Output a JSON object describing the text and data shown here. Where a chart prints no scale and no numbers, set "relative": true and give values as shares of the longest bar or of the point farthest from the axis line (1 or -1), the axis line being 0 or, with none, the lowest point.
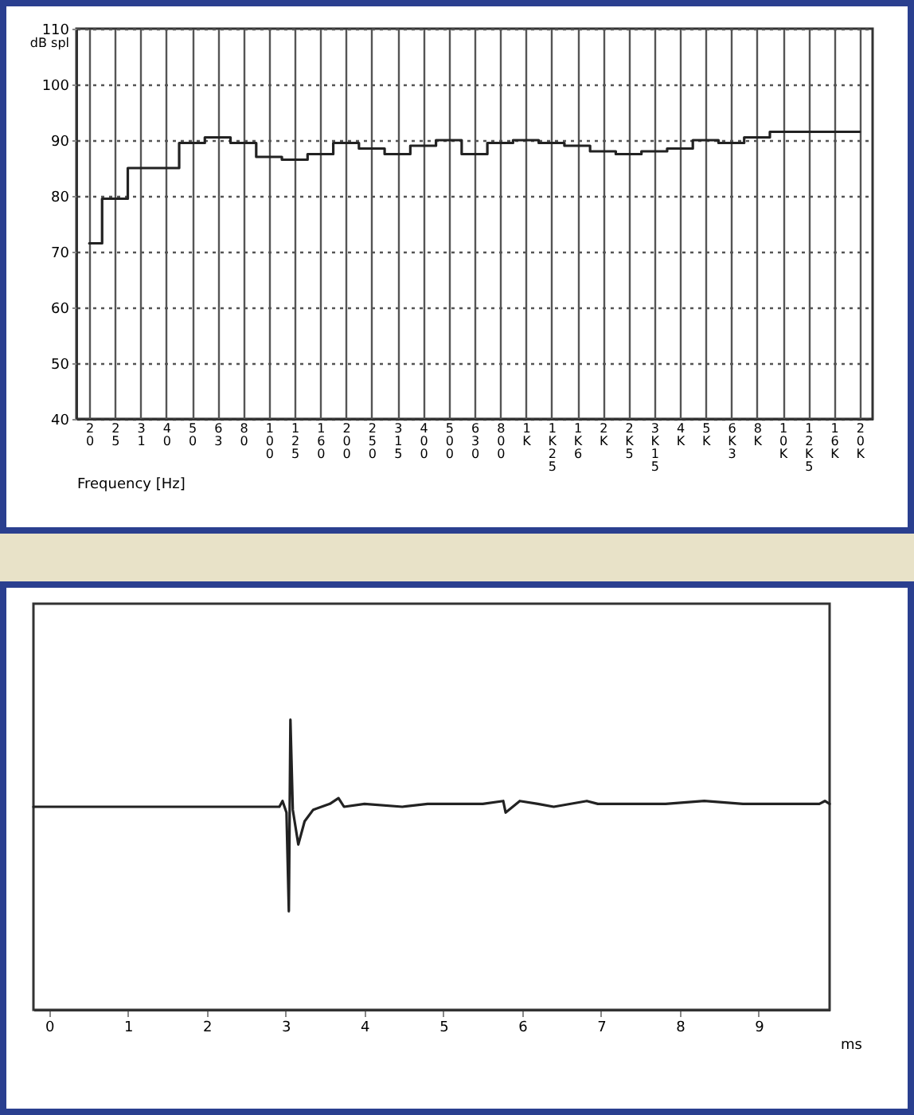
{
  "chart_data": [
    {
      "type": "step",
      "xlabel": "Frequency [Hz]",
      "ylabel": "dB spl",
      "categories": [
        "20",
        "25",
        "31",
        "40",
        "50",
        "63",
        "80",
        "100",
        "125",
        "160",
        "200",
        "250",
        "315",
        "400",
        "500",
        "630",
        "800",
        "1K",
        "1K25",
        "1K6",
        "2K",
        "2K5",
        "3K15",
        "4K",
        "5K",
        "6K3",
        "8K",
        "10K",
        "12K5",
        "16K",
        "20K"
      ],
      "series": [
        {
          "color": "#222222",
          "values": [
            71.5,
            79.5,
            85,
            85,
            89.5,
            90.5,
            89.5,
            87,
            86.5,
            87.5,
            89.5,
            88.5,
            87.5,
            89,
            90,
            87.5,
            89.5,
            90,
            89.5,
            89,
            88,
            87.5,
            88,
            88.5,
            90,
            89.5,
            90.5,
            91.5,
            91.5,
            91.5,
            91.5
          ]
        }
      ],
      "ylim": [
        40,
        110
      ],
      "yticks": [
        40,
        50,
        60,
        70,
        80,
        90,
        100,
        110
      ],
      "grid": true
    },
    {
      "type": "line",
      "xlabel": "ms",
      "relative": true,
      "tick_labels": "x",
      "xlim": [
        -0.2,
        9.9
      ],
      "xticks": [
        0,
        1,
        2,
        3,
        4,
        5,
        6,
        7,
        8,
        9
      ],
      "series": [
        {
          "color": "#222222",
          "x": [
            -0.2,
            2.92,
            2.96,
            3.01,
            3.04,
            3.06,
            3.09,
            3.16,
            3.24,
            3.35,
            3.56,
            3.67,
            3.74,
            4.0,
            4.48,
            4.8,
            5.26,
            5.5,
            5.76,
            5.79,
            5.97,
            6.2,
            6.4,
            6.82,
            6.96,
            7.4,
            7.82,
            8.31,
            8.8,
            9.16,
            9.5,
            9.77,
            9.84,
            9.9
          ],
          "values": [
            0.7,
            0.7,
            0.72,
            0.68,
            0.34,
            1,
            0.69,
            0.57,
            0.65,
            0.69,
            0.71,
            0.73,
            0.7,
            0.71,
            0.7,
            0.71,
            0.71,
            0.71,
            0.72,
            0.68,
            0.72,
            0.71,
            0.7,
            0.72,
            0.71,
            0.71,
            0.71,
            0.72,
            0.71,
            0.71,
            0.71,
            0.71,
            0.72,
            0.71
          ]
        }
      ]
    }
  ]
}
